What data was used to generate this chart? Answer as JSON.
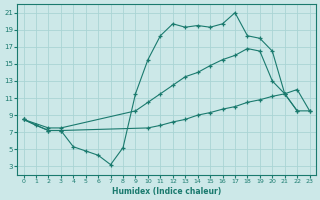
{
  "xlabel": "Humidex (Indice chaleur)",
  "background_color": "#cce8e8",
  "grid_color": "#aad4d4",
  "line_color": "#1a7a6e",
  "xlim": [
    -0.5,
    23.5
  ],
  "ylim": [
    2,
    22
  ],
  "xticks": [
    0,
    1,
    2,
    3,
    4,
    5,
    6,
    7,
    8,
    9,
    10,
    11,
    12,
    13,
    14,
    15,
    16,
    17,
    18,
    19,
    20,
    21,
    22,
    23
  ],
  "yticks": [
    3,
    5,
    7,
    9,
    11,
    13,
    15,
    17,
    19,
    21
  ],
  "line1_x": [
    0,
    1,
    2,
    3,
    4,
    5,
    6,
    7,
    8,
    9,
    10,
    11,
    12,
    13,
    14,
    15,
    16,
    17,
    18,
    19,
    20,
    21,
    22
  ],
  "line1_y": [
    8.5,
    7.8,
    7.2,
    7.2,
    5.3,
    4.8,
    4.3,
    3.2,
    5.2,
    11.5,
    15.5,
    18.3,
    19.7,
    19.3,
    19.5,
    19.3,
    19.7,
    21.0,
    18.3,
    18.0,
    16.5,
    11.5,
    9.5
  ],
  "line2_x": [
    0,
    2,
    3,
    9,
    10,
    11,
    12,
    13,
    14,
    15,
    16,
    17,
    18,
    19,
    20,
    21,
    22,
    23
  ],
  "line2_y": [
    8.5,
    7.5,
    7.5,
    9.5,
    10.5,
    11.5,
    12.5,
    13.5,
    14.0,
    14.8,
    15.5,
    16.0,
    16.8,
    16.5,
    13.0,
    11.5,
    9.5,
    9.5
  ],
  "line3_x": [
    0,
    2,
    3,
    10,
    11,
    12,
    13,
    14,
    15,
    16,
    17,
    18,
    19,
    20,
    21,
    22,
    23
  ],
  "line3_y": [
    8.5,
    7.2,
    7.2,
    7.5,
    7.8,
    8.2,
    8.5,
    9.0,
    9.3,
    9.7,
    10.0,
    10.5,
    10.8,
    11.2,
    11.5,
    12.0,
    9.5
  ]
}
